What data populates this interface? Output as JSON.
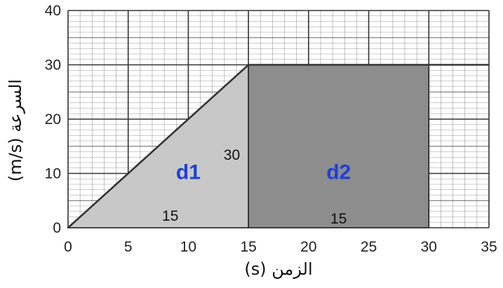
{
  "chart_data": {
    "type": "area",
    "xlabel": "الزمن (s)",
    "ylabel": "السرعة (m/s)",
    "xlim": [
      0,
      35
    ],
    "ylim": [
      0,
      40
    ],
    "xticks": [
      "0",
      "5",
      "10",
      "15",
      "20",
      "25",
      "30",
      "35"
    ],
    "yticks": [
      "0",
      "10",
      "20",
      "30",
      "40"
    ],
    "grid": true,
    "series": [
      {
        "x": [
          0,
          15,
          30,
          35
        ],
        "y": [
          0,
          30,
          30,
          30
        ]
      }
    ],
    "regions": [
      {
        "label": "d1",
        "shape": "triangle",
        "base": "15",
        "height": "30",
        "x_from": 0,
        "x_to": 15,
        "color": "#c8c8c8"
      },
      {
        "label": "d2",
        "shape": "rectangle",
        "base": "15",
        "x_from": 15,
        "x_to": 30,
        "color": "#8d8d8d"
      }
    ],
    "colors": {
      "area_name": "#1f3fd6",
      "grid": "#555555",
      "line": "#333333"
    }
  }
}
